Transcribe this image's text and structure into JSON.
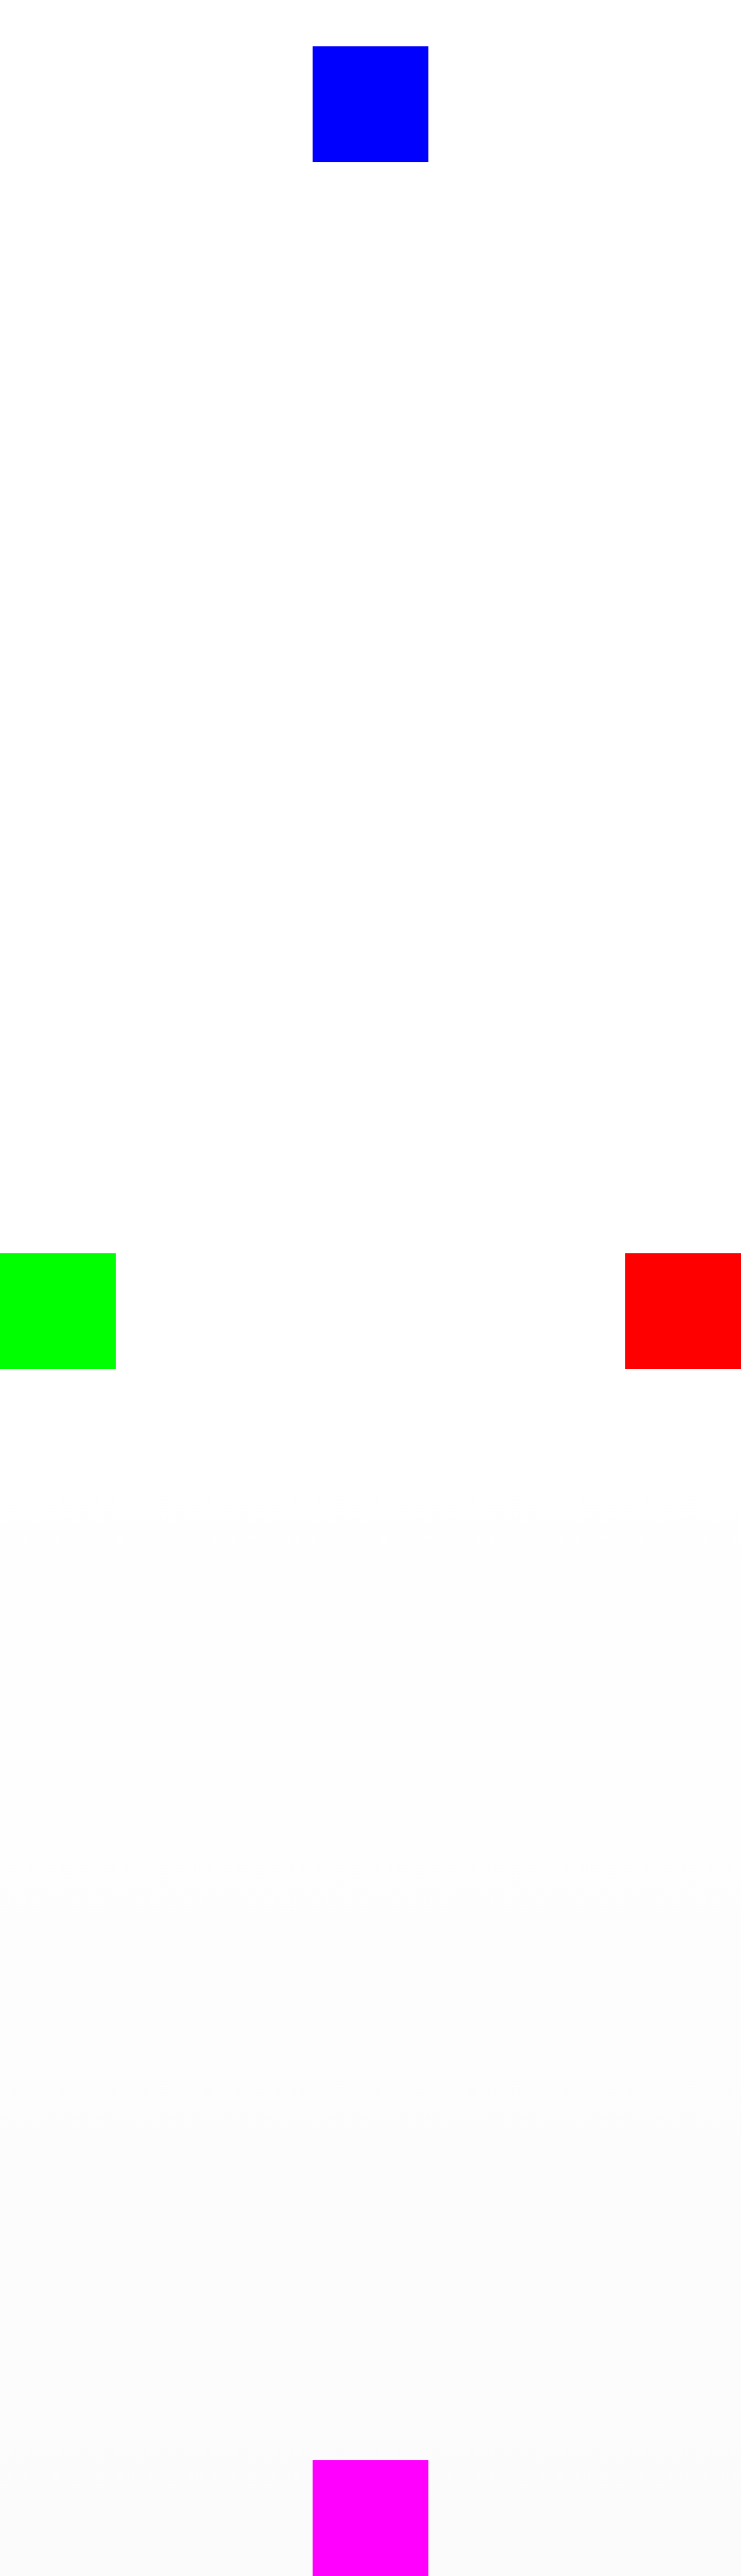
{
  "boxes": {
    "top": {
      "color": "#0000ff"
    },
    "left": {
      "color": "#00ff00"
    },
    "right": {
      "color": "#ff0000"
    },
    "bottom": {
      "color": "#ff00ff"
    }
  }
}
